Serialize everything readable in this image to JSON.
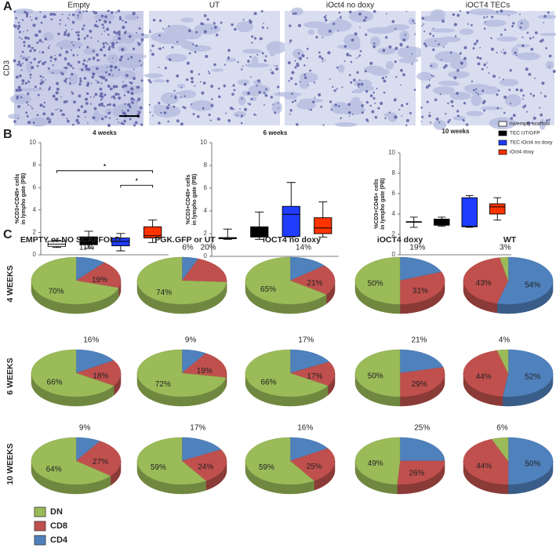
{
  "panel_a": {
    "label": "A",
    "row_label": "CD3",
    "columns": [
      "Empty",
      "UT",
      "iOct4 no doxy",
      "iOCT4 TECs"
    ]
  },
  "panel_b": {
    "label": "B"
  },
  "panel_c": {
    "label": "C",
    "columns": [
      "EMPTY or  NO SCAFFOLD",
      "PGK.GFP or UT",
      "iOCT4 no doxy",
      "iOCT4 doxy",
      "WT"
    ],
    "rows": [
      "4 WEEKS",
      "6 WEEKS",
      "10 WEEKS"
    ],
    "legend": [
      {
        "name": "DN",
        "color": "#9bbb59"
      },
      {
        "name": "CD8",
        "color": "#c0504d"
      },
      {
        "name": "CD4",
        "color": "#4f81bd"
      }
    ]
  },
  "chart_data": [
    {
      "type": "box",
      "title": "4 weeks",
      "ylabel": [
        "%CD3+CD45+  cells",
        "in lympho gate (PB)"
      ],
      "ylim": [
        0,
        10
      ],
      "yticks": [
        0,
        2,
        4,
        6,
        8,
        10
      ],
      "series": [
        {
          "color": "#ffffff",
          "values": [
            0.65,
            0.75,
            0.95,
            1.2,
            1.3
          ]
        },
        {
          "color": "#000000",
          "values": [
            0.6,
            0.9,
            1.3,
            1.6,
            2.1
          ]
        },
        {
          "color": "#1f3cff",
          "values": [
            0.35,
            0.8,
            1.2,
            1.5,
            1.9
          ]
        },
        {
          "color": "#ff3300",
          "values": [
            1.1,
            1.5,
            1.7,
            2.5,
            3.1
          ]
        }
      ],
      "annotations": [
        {
          "text": "*",
          "y": 7.5,
          "from": 0,
          "to": 3
        },
        {
          "text": "*",
          "y": 6.2,
          "from": 2,
          "to": 3
        }
      ]
    },
    {
      "type": "box",
      "title": "6 weeks",
      "ylabel": [
        "%CD3+CD45+  cells",
        "in lympho gate (PB)"
      ],
      "ylim": [
        0,
        10
      ],
      "yticks": [
        0,
        2,
        4,
        6,
        8,
        10
      ],
      "series": [
        {
          "color": "#ffffff",
          "values": [
            1.5,
            1.55,
            1.6,
            1.65,
            2.4
          ]
        },
        {
          "color": "#000000",
          "values": [
            1.5,
            1.7,
            2.1,
            2.6,
            3.9
          ]
        },
        {
          "color": "#1f3cff",
          "values": [
            1.7,
            1.75,
            3.7,
            4.4,
            6.5
          ]
        },
        {
          "color": "#ff3300",
          "values": [
            1.7,
            2.0,
            2.5,
            3.4,
            4.8
          ]
        }
      ]
    },
    {
      "type": "box",
      "title": "10 weeks",
      "ylabel": [
        "%CD3+CD45+  cells",
        "in lympho gate (PB)"
      ],
      "ylim": [
        0,
        10
      ],
      "yticks": [
        0,
        2,
        4,
        6,
        8,
        10
      ],
      "legend": "upper right",
      "series": [
        {
          "name": "no/empty scaffold",
          "color": "#ffffff",
          "values": [
            2.7,
            3.2,
            3.2,
            3.25,
            3.7
          ]
        },
        {
          "name": "TEC UT/GFP",
          "color": "#000000",
          "values": [
            2.8,
            2.9,
            3.1,
            3.5,
            3.7
          ]
        },
        {
          "name": "TEC iOct4 no doxy",
          "color": "#1f3cff",
          "values": [
            2.7,
            2.75,
            2.8,
            5.6,
            5.8
          ]
        },
        {
          "name": "iOct4 doxy",
          "color": "#ff3300",
          "values": [
            3.4,
            4.0,
            4.7,
            5.0,
            5.6
          ]
        }
      ]
    },
    {
      "type": "pie",
      "values": [
        70,
        19,
        11
      ],
      "value_labels": [
        "70%",
        "19%",
        "11%"
      ]
    },
    {
      "type": "pie",
      "values": [
        74,
        20,
        6
      ],
      "value_labels": [
        "74%",
        "20%",
        "6%"
      ]
    },
    {
      "type": "pie",
      "values": [
        65,
        21,
        14
      ],
      "value_labels": [
        "65%",
        "21%",
        "14%"
      ]
    },
    {
      "type": "pie",
      "values": [
        50,
        31,
        19
      ],
      "value_labels": [
        "50%",
        "31%",
        "19%"
      ]
    },
    {
      "type": "pie",
      "values": [
        3,
        43,
        54
      ],
      "value_labels": [
        "3%",
        "43%",
        "54%"
      ]
    },
    {
      "type": "pie",
      "values": [
        66,
        18,
        16
      ],
      "value_labels": [
        "66%",
        "18%",
        "16%"
      ]
    },
    {
      "type": "pie",
      "values": [
        72,
        19,
        9
      ],
      "value_labels": [
        "72%",
        "19%",
        "9%"
      ]
    },
    {
      "type": "pie",
      "values": [
        66,
        17,
        17
      ],
      "value_labels": [
        "66%",
        "17%",
        "17%"
      ]
    },
    {
      "type": "pie",
      "values": [
        50,
        29,
        21
      ],
      "value_labels": [
        "50%",
        "29%",
        "21%"
      ]
    },
    {
      "type": "pie",
      "values": [
        4,
        44,
        52
      ],
      "value_labels": [
        "4%",
        "44%",
        "52%"
      ]
    },
    {
      "type": "pie",
      "values": [
        64,
        27,
        9
      ],
      "value_labels": [
        "64%",
        "27%",
        "9%"
      ]
    },
    {
      "type": "pie",
      "values": [
        59,
        24,
        17
      ],
      "value_labels": [
        "59%",
        "24%",
        "17%"
      ]
    },
    {
      "type": "pie",
      "values": [
        59,
        25,
        16
      ],
      "value_labels": [
        "59%",
        "25%",
        "16%"
      ]
    },
    {
      "type": "pie",
      "values": [
        49,
        26,
        25
      ],
      "value_labels": [
        "49%",
        "26%",
        "25%"
      ]
    },
    {
      "type": "pie",
      "values": [
        6,
        44,
        50
      ],
      "value_labels": [
        "6%",
        "44%",
        "50%"
      ]
    }
  ]
}
